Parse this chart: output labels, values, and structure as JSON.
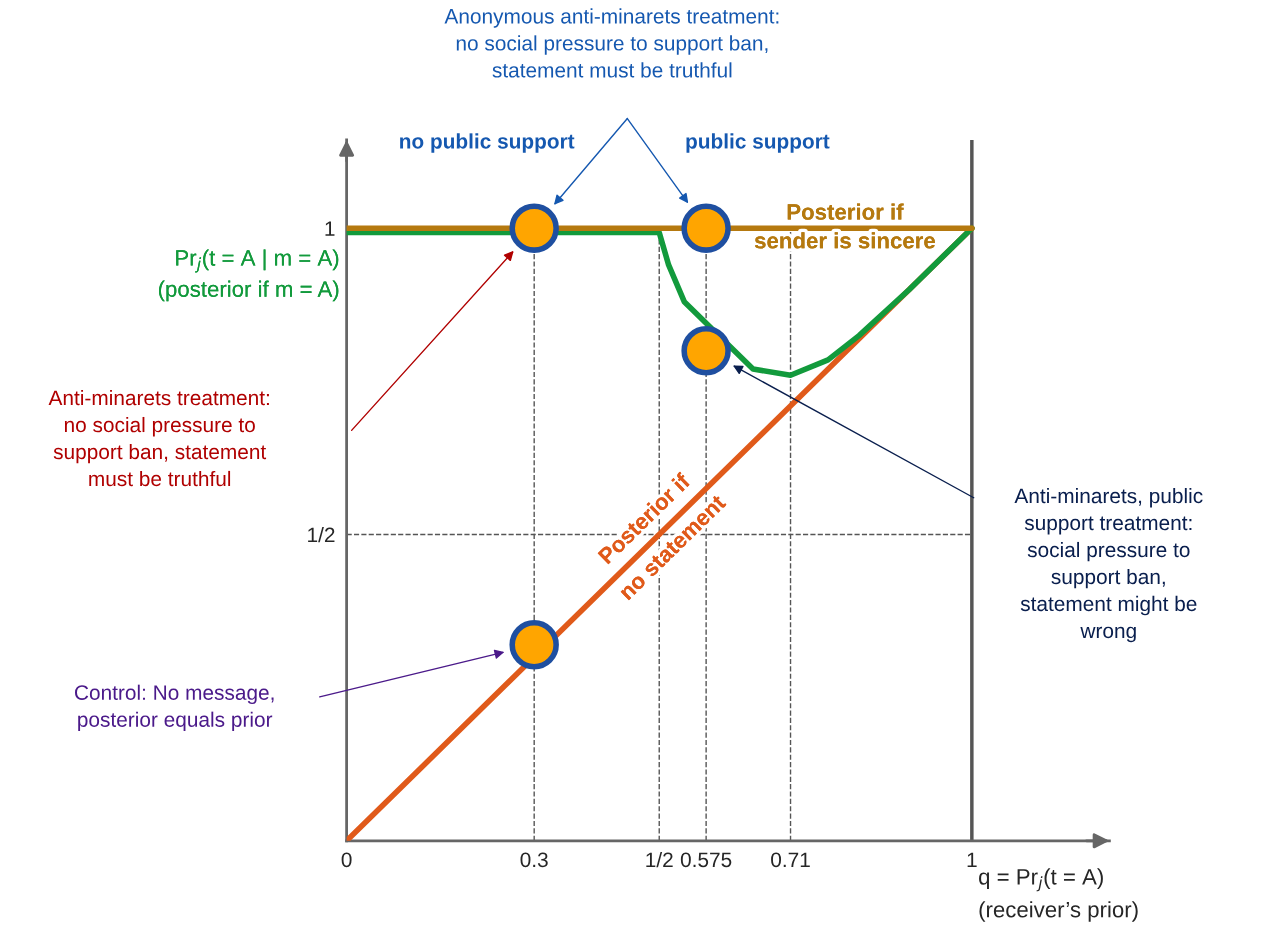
{
  "chart_data": {
    "type": "line",
    "xlabel": "q = Pr$_{j}$(t = A)\n(receiver’s prior)",
    "xlim": [
      0,
      1.22
    ],
    "ylim": [
      0,
      1.144
    ],
    "xticks": [
      0,
      0.3,
      {
        "value": 0.5,
        "label": "1/2"
      },
      0.575,
      0.71,
      1
    ],
    "yticks": [
      {
        "value": 0.5,
        "label": "1/2"
      },
      1
    ],
    "grid": false,
    "series": [
      {
        "name": "Posterior if\nsender is sincere",
        "color": "#b5790f",
        "x": [
          0,
          1
        ],
        "values": [
          1,
          1
        ]
      },
      {
        "name": "Pr$_{j}$(t = A | m = A)\n(posterior if m = A)",
        "color": "#129a3c",
        "x": [
          0,
          0.5,
          0.515,
          0.54,
          0.65,
          0.71,
          0.77,
          0.82,
          0.9,
          1
        ],
        "values": [
          0.993,
          0.993,
          0.94,
          0.88,
          0.77,
          0.76,
          0.785,
          0.825,
          0.9,
          1
        ]
      },
      {
        "name": "Posterior if\nno statement",
        "color": "#e05a1a",
        "x": [
          0,
          1
        ],
        "values": [
          0,
          1
        ]
      },
      {
        "type": "scatter",
        "color": "#ffa500",
        "x": [
          0.3,
          0.575,
          0.575,
          0.3
        ],
        "values": [
          1,
          1,
          0.8,
          0.32
        ]
      }
    ],
    "ref_lines": [
      {
        "axis": "x",
        "value": 0.3,
        "line_style": "dashed",
        "color": "#555555"
      },
      {
        "axis": "x",
        "value": 0.5,
        "line_style": "dashed",
        "color": "#555555"
      },
      {
        "axis": "x",
        "value": 0.575,
        "line_style": "dashed",
        "color": "#555555"
      },
      {
        "axis": "x",
        "value": 0.71,
        "line_style": "dashed",
        "color": "#555555"
      },
      {
        "axis": "y",
        "value": 0.5,
        "line_style": "dashed",
        "color": "#555555"
      },
      {
        "axis": "x",
        "value": 1,
        "line_style": "solid",
        "color": "#555555"
      }
    ],
    "annotations": [
      "Anonymous anti-minarets treatment:\nno social pressure to support ban,\nstatement must be truthful",
      "no public support",
      "public support",
      "Anti-minarets treatment:\nno social pressure to\nsupport ban, statement\nmust be truthful",
      "Anti-minarets, public\nsupport treatment:\nsocial pressure to\nsupport ban,\nstatement might be\nwrong",
      "Control: No message,\nposterior equals prior"
    ]
  }
}
